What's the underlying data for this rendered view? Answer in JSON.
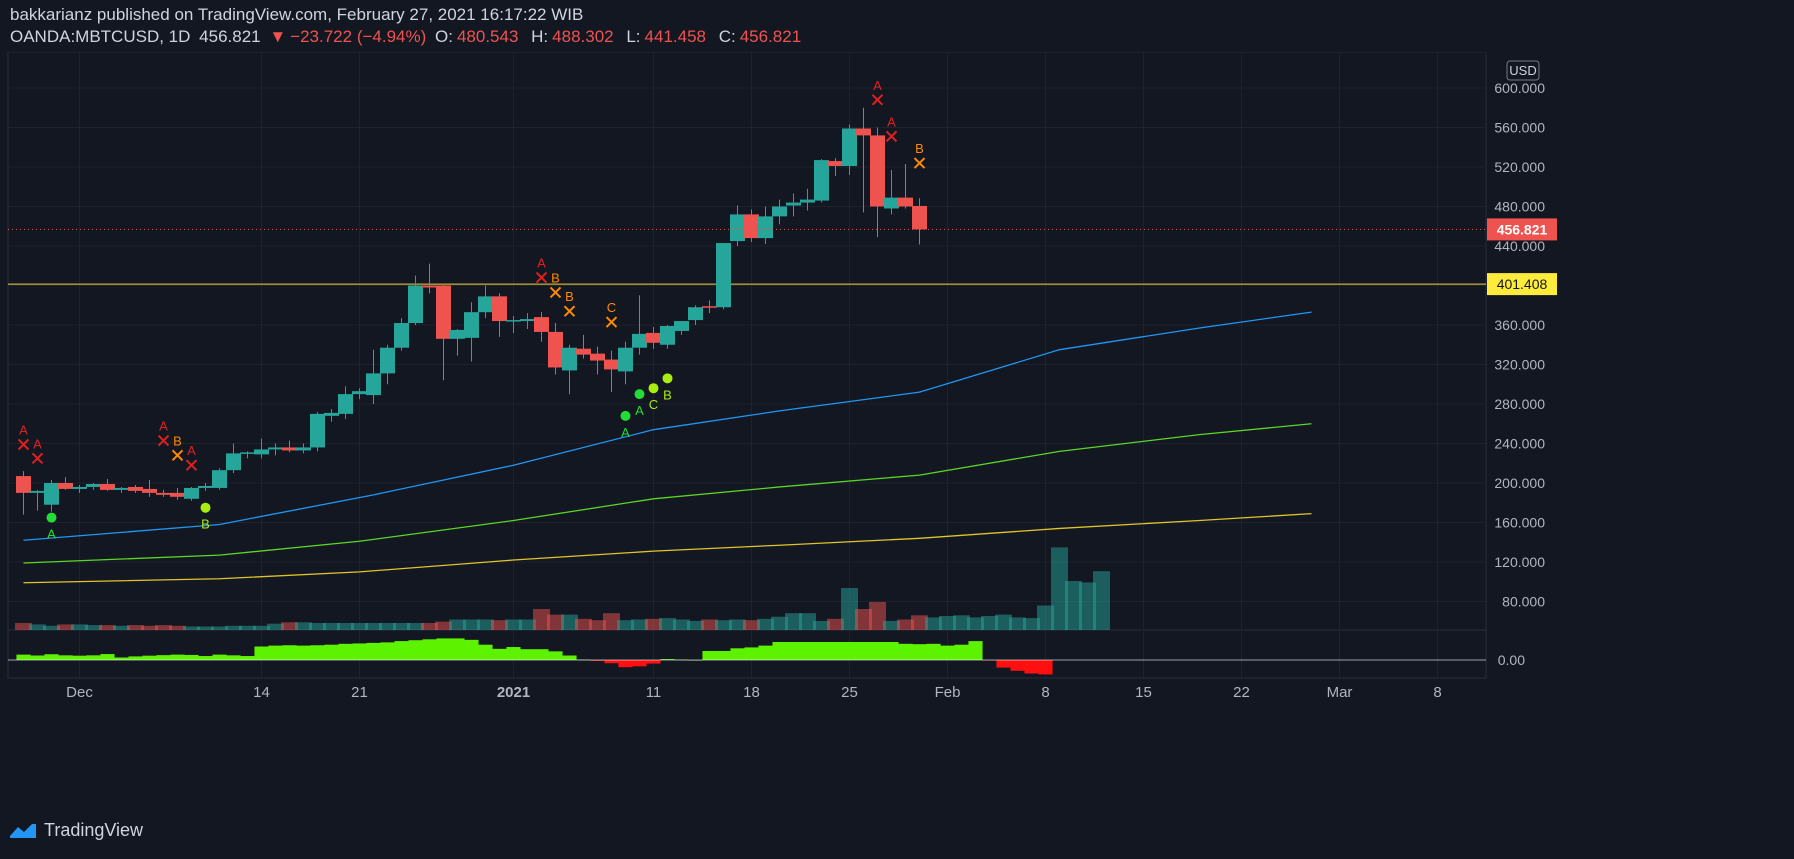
{
  "header": {
    "publish_line": "bakkarianz published on TradingView.com, February 27, 2021 16:17:22 WIB",
    "symbol": "OANDA:MBTCUSD, 1D",
    "last": "456.821",
    "arrow": "▼",
    "change": "−23.722 (−4.94%)",
    "o_label": "O:",
    "o_value": "480.543",
    "h_label": "H:",
    "h_value": "488.302",
    "l_label": "L:",
    "l_value": "441.458",
    "c_label": "C:",
    "c_value": "456.821"
  },
  "footer": {
    "brand": "TradingView"
  },
  "colors": {
    "up": "#26a69a",
    "down": "#ef5350",
    "background": "#131722",
    "ma1": "#2196f3",
    "ma2": "#5bd624",
    "ma3": "#e0c42a",
    "hline": "#f0d53b",
    "osc_pos": "#5cf200",
    "osc_neg": "#ff1010"
  },
  "chart_data": {
    "type": "candlestick",
    "currency_badge": "USD",
    "ylim": [
      50,
      620
    ],
    "y_ticks": [
      "600.000",
      "560.000",
      "520.000",
      "480.000",
      "440.000",
      "400.000",
      "360.000",
      "320.000",
      "280.000",
      "240.000",
      "200.000",
      "160.000",
      "120.000",
      "80.000"
    ],
    "x_labels": [
      {
        "label": "Dec",
        "day": 0
      },
      {
        "label": "14",
        "day": 13
      },
      {
        "label": "21",
        "day": 20
      },
      {
        "label": "2021",
        "day": 31
      },
      {
        "label": "11",
        "day": 41
      },
      {
        "label": "18",
        "day": 48
      },
      {
        "label": "25",
        "day": 55
      },
      {
        "label": "Feb",
        "day": 62
      },
      {
        "label": "8",
        "day": 69
      },
      {
        "label": "15",
        "day": 76
      },
      {
        "label": "22",
        "day": 83
      },
      {
        "label": "Mar",
        "day": 90
      },
      {
        "label": "8",
        "day": 97
      }
    ],
    "price_label": "456.821",
    "hline_value": 401.408,
    "hline_label": "401.408",
    "osc_label": "0.00",
    "candles": [
      {
        "d": -4,
        "o": 207,
        "h": 212,
        "l": 168,
        "c": 190
      },
      {
        "d": -3,
        "o": 190,
        "h": 193,
        "l": 172,
        "c": 192
      },
      {
        "d": -2,
        "o": 178,
        "h": 203,
        "l": 171,
        "c": 200
      },
      {
        "d": -1,
        "o": 200,
        "h": 206,
        "l": 193,
        "c": 194
      },
      {
        "d": 0,
        "o": 194,
        "h": 198,
        "l": 190,
        "c": 196
      },
      {
        "d": 1,
        "o": 196,
        "h": 200,
        "l": 193,
        "c": 199
      },
      {
        "d": 2,
        "o": 199,
        "h": 204,
        "l": 192,
        "c": 193
      },
      {
        "d": 3,
        "o": 193,
        "h": 196,
        "l": 190,
        "c": 195
      },
      {
        "d": 4,
        "o": 196,
        "h": 198,
        "l": 190,
        "c": 192
      },
      {
        "d": 5,
        "o": 194,
        "h": 203,
        "l": 186,
        "c": 190
      },
      {
        "d": 6,
        "o": 190,
        "h": 193,
        "l": 186,
        "c": 188
      },
      {
        "d": 7,
        "o": 190,
        "h": 195,
        "l": 183,
        "c": 186
      },
      {
        "d": 8,
        "o": 184,
        "h": 196,
        "l": 182,
        "c": 195
      },
      {
        "d": 9,
        "o": 195,
        "h": 200,
        "l": 192,
        "c": 197
      },
      {
        "d": 10,
        "o": 195,
        "h": 215,
        "l": 193,
        "c": 213
      },
      {
        "d": 11,
        "o": 213,
        "h": 240,
        "l": 210,
        "c": 230
      },
      {
        "d": 12,
        "o": 230,
        "h": 232,
        "l": 225,
        "c": 231
      },
      {
        "d": 13,
        "o": 229,
        "h": 245,
        "l": 225,
        "c": 234
      },
      {
        "d": 14,
        "o": 234,
        "h": 240,
        "l": 228,
        "c": 236
      },
      {
        "d": 15,
        "o": 236,
        "h": 243,
        "l": 231,
        "c": 233
      },
      {
        "d": 16,
        "o": 233,
        "h": 240,
        "l": 230,
        "c": 236
      },
      {
        "d": 17,
        "o": 236,
        "h": 272,
        "l": 232,
        "c": 270
      },
      {
        "d": 18,
        "o": 268,
        "h": 275,
        "l": 262,
        "c": 271
      },
      {
        "d": 19,
        "o": 270,
        "h": 298,
        "l": 265,
        "c": 290
      },
      {
        "d": 20,
        "o": 290,
        "h": 296,
        "l": 285,
        "c": 293
      },
      {
        "d": 21,
        "o": 289,
        "h": 335,
        "l": 280,
        "c": 311
      },
      {
        "d": 22,
        "o": 311,
        "h": 340,
        "l": 300,
        "c": 337
      },
      {
        "d": 23,
        "o": 337,
        "h": 367,
        "l": 334,
        "c": 362
      },
      {
        "d": 24,
        "o": 362,
        "h": 410,
        "l": 360,
        "c": 400
      },
      {
        "d": 25,
        "o": 400,
        "h": 422,
        "l": 392,
        "c": 398
      },
      {
        "d": 26,
        "o": 400,
        "h": 402,
        "l": 304,
        "c": 346
      },
      {
        "d": 27,
        "o": 346,
        "h": 356,
        "l": 329,
        "c": 355
      },
      {
        "d": 28,
        "o": 347,
        "h": 383,
        "l": 323,
        "c": 373
      },
      {
        "d": 29,
        "o": 373,
        "h": 400,
        "l": 367,
        "c": 389
      },
      {
        "d": 30,
        "o": 389,
        "h": 392,
        "l": 348,
        "c": 364
      },
      {
        "d": 31,
        "o": 364,
        "h": 369,
        "l": 352,
        "c": 365
      },
      {
        "d": 32,
        "o": 364,
        "h": 372,
        "l": 356,
        "c": 366
      },
      {
        "d": 33,
        "o": 368,
        "h": 373,
        "l": 343,
        "c": 353
      },
      {
        "d": 34,
        "o": 353,
        "h": 362,
        "l": 310,
        "c": 317
      },
      {
        "d": 35,
        "o": 314,
        "h": 340,
        "l": 290,
        "c": 337
      },
      {
        "d": 36,
        "o": 336,
        "h": 350,
        "l": 326,
        "c": 330
      },
      {
        "d": 37,
        "o": 331,
        "h": 338,
        "l": 310,
        "c": 324
      },
      {
        "d": 38,
        "o": 325,
        "h": 334,
        "l": 292,
        "c": 315
      },
      {
        "d": 39,
        "o": 313,
        "h": 343,
        "l": 300,
        "c": 337
      },
      {
        "d": 40,
        "o": 337,
        "h": 390,
        "l": 330,
        "c": 351
      },
      {
        "d": 41,
        "o": 352,
        "h": 358,
        "l": 336,
        "c": 342
      },
      {
        "d": 42,
        "o": 340,
        "h": 360,
        "l": 336,
        "c": 359
      },
      {
        "d": 43,
        "o": 354,
        "h": 362,
        "l": 350,
        "c": 364
      },
      {
        "d": 44,
        "o": 365,
        "h": 380,
        "l": 360,
        "c": 378
      },
      {
        "d": 45,
        "o": 379,
        "h": 385,
        "l": 372,
        "c": 378
      },
      {
        "d": 46,
        "o": 378,
        "h": 442,
        "l": 376,
        "c": 443
      },
      {
        "d": 47,
        "o": 445,
        "h": 481,
        "l": 440,
        "c": 472
      },
      {
        "d": 48,
        "o": 472,
        "h": 477,
        "l": 444,
        "c": 448
      },
      {
        "d": 49,
        "o": 448,
        "h": 480,
        "l": 442,
        "c": 470
      },
      {
        "d": 50,
        "o": 470,
        "h": 487,
        "l": 462,
        "c": 480
      },
      {
        "d": 51,
        "o": 481,
        "h": 493,
        "l": 470,
        "c": 484
      },
      {
        "d": 52,
        "o": 484,
        "h": 498,
        "l": 476,
        "c": 487
      },
      {
        "d": 53,
        "o": 486,
        "h": 528,
        "l": 484,
        "c": 527
      },
      {
        "d": 54,
        "o": 526,
        "h": 529,
        "l": 511,
        "c": 521
      },
      {
        "d": 55,
        "o": 521,
        "h": 563,
        "l": 512,
        "c": 559
      },
      {
        "d": 56,
        "o": 559,
        "h": 580,
        "l": 474,
        "c": 552
      },
      {
        "d": 57,
        "o": 552,
        "h": 560,
        "l": 449,
        "c": 480
      },
      {
        "d": 58,
        "o": 478,
        "h": 517,
        "l": 472,
        "c": 489
      },
      {
        "d": 59,
        "o": 489,
        "h": 523,
        "l": 478,
        "c": 480
      },
      {
        "d": 60,
        "o": 480.543,
        "h": 488.302,
        "l": 441.458,
        "c": 456.821
      }
    ],
    "volumes": [
      10,
      8,
      6,
      8,
      8,
      7,
      7,
      6,
      7,
      6,
      7,
      6,
      5,
      5,
      5,
      6,
      6,
      6,
      9,
      11,
      11,
      10,
      10,
      10,
      10,
      10,
      10,
      10,
      10,
      10,
      12,
      15,
      15,
      15,
      14,
      15,
      15,
      30,
      22,
      22,
      16,
      14,
      24,
      14,
      15,
      16,
      17,
      15,
      13,
      15,
      14,
      15,
      14,
      16,
      19,
      24,
      24,
      13,
      16,
      60,
      30,
      40,
      13,
      15,
      21,
      18,
      20,
      21,
      18,
      20,
      22,
      18,
      17,
      35,
      118,
      70,
      68,
      84
    ],
    "ma_series": [
      {
        "values": [
          {
            "d": -4,
            "v": 142
          },
          {
            "d": 10,
            "v": 158
          },
          {
            "d": 21,
            "v": 188
          },
          {
            "d": 31,
            "v": 218
          },
          {
            "d": 41,
            "v": 254
          },
          {
            "d": 50,
            "v": 273
          },
          {
            "d": 60,
            "v": 292
          },
          {
            "d": 70,
            "v": 335
          },
          {
            "d": 80,
            "v": 357
          },
          {
            "d": 88,
            "v": 373
          }
        ]
      },
      {
        "values": [
          {
            "d": -4,
            "v": 119
          },
          {
            "d": 10,
            "v": 127
          },
          {
            "d": 20,
            "v": 141
          },
          {
            "d": 31,
            "v": 162
          },
          {
            "d": 41,
            "v": 184
          },
          {
            "d": 50,
            "v": 196
          },
          {
            "d": 60,
            "v": 208
          },
          {
            "d": 70,
            "v": 232
          },
          {
            "d": 80,
            "v": 249
          },
          {
            "d": 88,
            "v": 260
          }
        ]
      },
      {
        "values": [
          {
            "d": -4,
            "v": 99
          },
          {
            "d": 10,
            "v": 103
          },
          {
            "d": 20,
            "v": 110
          },
          {
            "d": 31,
            "v": 122
          },
          {
            "d": 41,
            "v": 131
          },
          {
            "d": 50,
            "v": 137
          },
          {
            "d": 60,
            "v": 144
          },
          {
            "d": 70,
            "v": 154
          },
          {
            "d": 80,
            "v": 162
          },
          {
            "d": 88,
            "v": 169
          }
        ]
      }
    ],
    "oscillator": [
      0.3,
      0.25,
      0.32,
      0.26,
      0.24,
      0.26,
      0.33,
      0.14,
      0.2,
      0.24,
      0.27,
      0.3,
      0.28,
      0.22,
      0.3,
      0.26,
      0.22,
      0.75,
      0.8,
      0.82,
      0.8,
      0.82,
      0.85,
      0.9,
      0.92,
      0.95,
      0.98,
      1.05,
      1.1,
      1.15,
      1.2,
      1.2,
      1.12,
      0.85,
      0.62,
      0.72,
      0.6,
      0.6,
      0.48,
      0.25,
      0.02,
      -0.05,
      -0.18,
      -0.4,
      -0.35,
      -0.2,
      0.05,
      0.02,
      0,
      0.5,
      0.5,
      0.65,
      0.7,
      0.8,
      1,
      1,
      1,
      1,
      1,
      1,
      1,
      1,
      1,
      0.9,
      0.88,
      0.9,
      0.8,
      0.85,
      1.05,
      -0.02,
      -0.42,
      -0.6,
      -0.75,
      -0.8
    ],
    "signals": [
      {
        "d": -4,
        "label": "A",
        "kind": "x",
        "y": 239,
        "color": "#e02020"
      },
      {
        "d": -3,
        "label": "A",
        "kind": "x",
        "y": 225,
        "color": "#e02020"
      },
      {
        "d": -2,
        "label": "A",
        "kind": "dot",
        "y": 165,
        "color": "#22dd33"
      },
      {
        "d": 6,
        "label": "A",
        "kind": "x",
        "y": 243,
        "color": "#e02020"
      },
      {
        "d": 7,
        "label": "B",
        "kind": "x",
        "y": 228,
        "color": "#ff8a00"
      },
      {
        "d": 8,
        "label": "A",
        "kind": "x",
        "y": 218,
        "color": "#e02020"
      },
      {
        "d": 9,
        "label": "B",
        "kind": "dot",
        "y": 175,
        "color": "#aaee10"
      },
      {
        "d": 33,
        "label": "A",
        "kind": "x",
        "y": 408,
        "color": "#e02020"
      },
      {
        "d": 34,
        "label": "B",
        "kind": "x",
        "y": 393,
        "color": "#ff8a00"
      },
      {
        "d": 35,
        "label": "B",
        "kind": "x",
        "y": 374,
        "color": "#ff8a00"
      },
      {
        "d": 38,
        "label": "C",
        "kind": "x",
        "y": 363,
        "color": "#ff8a00"
      },
      {
        "d": 39,
        "label": "A",
        "kind": "dot",
        "y": 268,
        "color": "#22dd33"
      },
      {
        "d": 40,
        "label": "A",
        "kind": "dot",
        "y": 290,
        "color": "#22dd33"
      },
      {
        "d": 41,
        "label": "C",
        "kind": "dot",
        "y": 296,
        "color": "#aaee10"
      },
      {
        "d": 42,
        "label": "B",
        "kind": "dot",
        "y": 306,
        "color": "#aaee10"
      },
      {
        "d": 57,
        "label": "A",
        "kind": "x",
        "y": 588,
        "color": "#e02020"
      },
      {
        "d": 58,
        "label": "A",
        "kind": "x",
        "y": 551,
        "color": "#e02020"
      },
      {
        "d": 60,
        "label": "B",
        "kind": "x",
        "y": 524,
        "color": "#ff8a00"
      }
    ]
  }
}
